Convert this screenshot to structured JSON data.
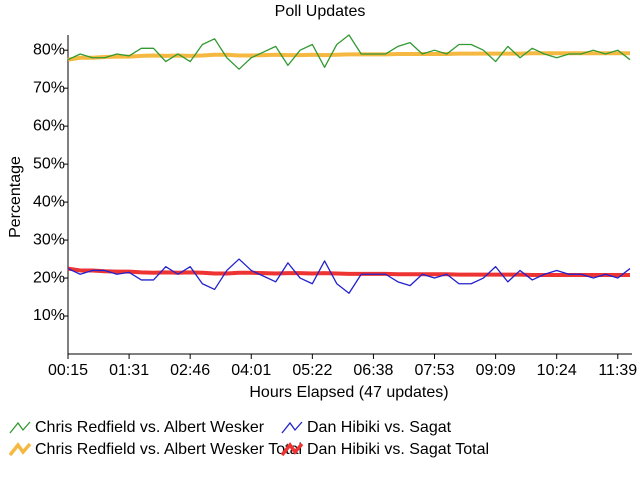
{
  "chart_data": {
    "type": "line",
    "title": "Poll Updates",
    "x_label": "Hours Elapsed (47 updates)",
    "y_label": "Percentage",
    "categories": [
      "00:15",
      null,
      null,
      null,
      null,
      "01:31",
      null,
      null,
      null,
      null,
      "02:46",
      null,
      null,
      null,
      null,
      "04:01",
      null,
      null,
      null,
      null,
      "05:22",
      null,
      null,
      null,
      null,
      "06:38",
      null,
      null,
      null,
      null,
      "07:53",
      null,
      null,
      null,
      null,
      "09:09",
      null,
      null,
      null,
      null,
      "10:24",
      null,
      null,
      null,
      null,
      "11:39",
      null
    ],
    "series": [
      {
        "name": "Chris Redfield vs. Albert Wesker",
        "color": "#339933",
        "width": 1.3,
        "values": [
          77.5,
          79,
          78,
          78,
          79,
          78.5,
          80.5,
          80.5,
          77,
          79,
          77,
          81.5,
          83,
          78,
          75,
          78,
          79.5,
          81,
          76,
          80,
          81.5,
          75.5,
          81.5,
          84,
          79,
          79,
          79,
          81,
          82,
          79,
          80,
          79,
          81.5,
          81.5,
          80,
          77,
          81,
          78,
          80.5,
          79,
          78,
          79,
          79,
          80,
          79,
          80,
          77.5
        ]
      },
      {
        "name": "Dan Hibiki vs. Sagat",
        "color": "#2222cc",
        "width": 1.3,
        "values": [
          22.5,
          21,
          22,
          22,
          21,
          21.5,
          19.5,
          19.5,
          23,
          21,
          23,
          18.5,
          17,
          22,
          25,
          22,
          20.5,
          19,
          24,
          20,
          18.5,
          24.5,
          18.5,
          16,
          21,
          21,
          21,
          19,
          18,
          21,
          20,
          21,
          18.5,
          18.5,
          20,
          23,
          19,
          22,
          19.5,
          21,
          22,
          21,
          21,
          20,
          21,
          20,
          22.5
        ]
      },
      {
        "name": "Chris Redfield vs. Albert Wesker Total",
        "color": "#f5b942",
        "width": 4,
        "values": [
          77.5,
          78,
          78,
          78.2,
          78.3,
          78.3,
          78.5,
          78.6,
          78.5,
          78.6,
          78.5,
          78.6,
          78.8,
          78.8,
          78.6,
          78.6,
          78.7,
          78.8,
          78.7,
          78.7,
          78.8,
          78.7,
          78.8,
          78.9,
          78.9,
          78.9,
          78.9,
          79,
          79,
          79,
          79,
          79,
          79.1,
          79.1,
          79.1,
          79.1,
          79.1,
          79.1,
          79.2,
          79.2,
          79.2,
          79.2,
          79.2,
          79.2,
          79.2,
          79.2,
          79.2
        ]
      },
      {
        "name": "Dan Hibiki vs. Sagat Total",
        "color": "#ee3333",
        "width": 4,
        "values": [
          22.5,
          22,
          22,
          21.8,
          21.7,
          21.7,
          21.5,
          21.4,
          21.5,
          21.4,
          21.5,
          21.4,
          21.2,
          21.2,
          21.4,
          21.4,
          21.3,
          21.2,
          21.3,
          21.3,
          21.2,
          21.3,
          21.2,
          21.1,
          21.1,
          21.1,
          21.1,
          21,
          21,
          21,
          21,
          21,
          20.9,
          20.9,
          20.9,
          20.9,
          20.9,
          20.9,
          20.8,
          20.8,
          20.8,
          20.8,
          20.8,
          20.8,
          20.8,
          20.8,
          20.8
        ]
      }
    ],
    "ylim": [
      0,
      84
    ],
    "yticks": [
      {
        "value": 10,
        "label": "10%"
      },
      {
        "value": 20,
        "label": "20%"
      },
      {
        "value": 30,
        "label": "30%"
      },
      {
        "value": 40,
        "label": "40%"
      },
      {
        "value": 50,
        "label": "50%"
      },
      {
        "value": 60,
        "label": "60%"
      },
      {
        "value": 70,
        "label": "70%"
      },
      {
        "value": 80,
        "label": "80%"
      }
    ]
  }
}
